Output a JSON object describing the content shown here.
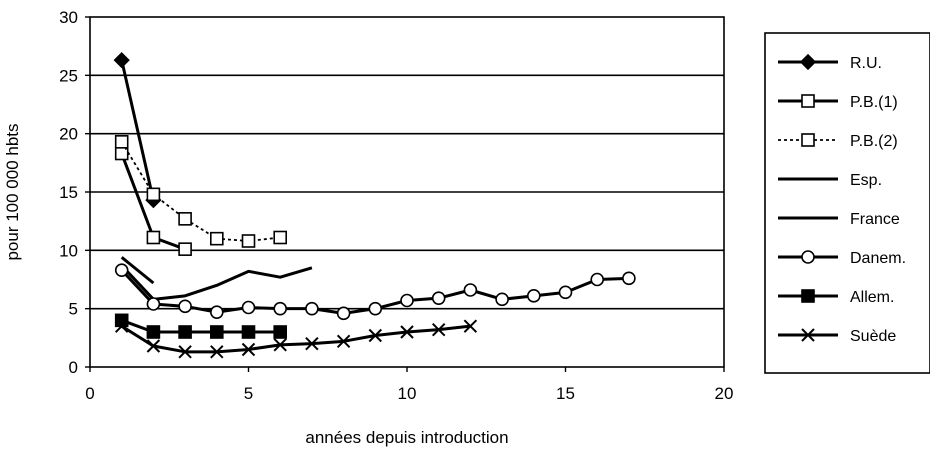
{
  "chart_data": {
    "type": "line",
    "title": "",
    "xlabel": "années depuis introduction",
    "ylabel": "pour 100 000 hbts",
    "xlim": [
      0,
      20
    ],
    "ylim": [
      0,
      30
    ],
    "x_ticks": [
      0,
      5,
      10,
      15,
      20
    ],
    "y_ticks": [
      0,
      5,
      10,
      15,
      20,
      25,
      30
    ],
    "grid": "horizontal",
    "legend_position": "right",
    "series": [
      {
        "name": "R.U.",
        "marker": "diamond-filled",
        "dashed": false,
        "x": [
          1,
          2
        ],
        "y": [
          26.3,
          14.3
        ]
      },
      {
        "name": "P.B.(1)",
        "marker": "square-open",
        "dashed": false,
        "x": [
          1,
          2,
          3
        ],
        "y": [
          18.3,
          11.1,
          10.1
        ]
      },
      {
        "name": "P.B.(2)",
        "marker": "square-open",
        "dashed": true,
        "x": [
          1,
          2,
          3,
          4,
          5,
          6
        ],
        "y": [
          19.3,
          14.8,
          12.7,
          11.0,
          10.8,
          11.1
        ]
      },
      {
        "name": "Esp.",
        "marker": "none",
        "dashed": false,
        "x": [
          1,
          2
        ],
        "y": [
          9.4,
          7.2
        ]
      },
      {
        "name": "France",
        "marker": "none",
        "dashed": false,
        "x": [
          1,
          2,
          3,
          4,
          5,
          6,
          7
        ],
        "y": [
          8.7,
          5.8,
          6.1,
          7.0,
          8.2,
          7.7,
          8.5
        ]
      },
      {
        "name": "Danem.",
        "marker": "circle-open",
        "dashed": false,
        "x": [
          1,
          2,
          3,
          4,
          5,
          6,
          7,
          8,
          9,
          10,
          11,
          12,
          13,
          14,
          15,
          16,
          17
        ],
        "y": [
          8.3,
          5.4,
          5.2,
          4.7,
          5.1,
          5.0,
          5.0,
          4.6,
          5.0,
          5.7,
          5.9,
          6.6,
          5.8,
          6.1,
          6.4,
          7.5,
          7.6
        ]
      },
      {
        "name": "Allem.",
        "marker": "square-filled",
        "dashed": false,
        "x": [
          1,
          2,
          3,
          4,
          5,
          6
        ],
        "y": [
          4.0,
          3.0,
          3.0,
          3.0,
          3.0,
          3.0
        ]
      },
      {
        "name": "Suède",
        "marker": "x",
        "dashed": false,
        "x": [
          1,
          2,
          3,
          4,
          5,
          6,
          7,
          8,
          9,
          10,
          11,
          12
        ],
        "y": [
          3.5,
          1.8,
          1.3,
          1.3,
          1.5,
          1.9,
          2.0,
          2.2,
          2.7,
          3.0,
          3.2,
          3.5
        ]
      }
    ]
  }
}
